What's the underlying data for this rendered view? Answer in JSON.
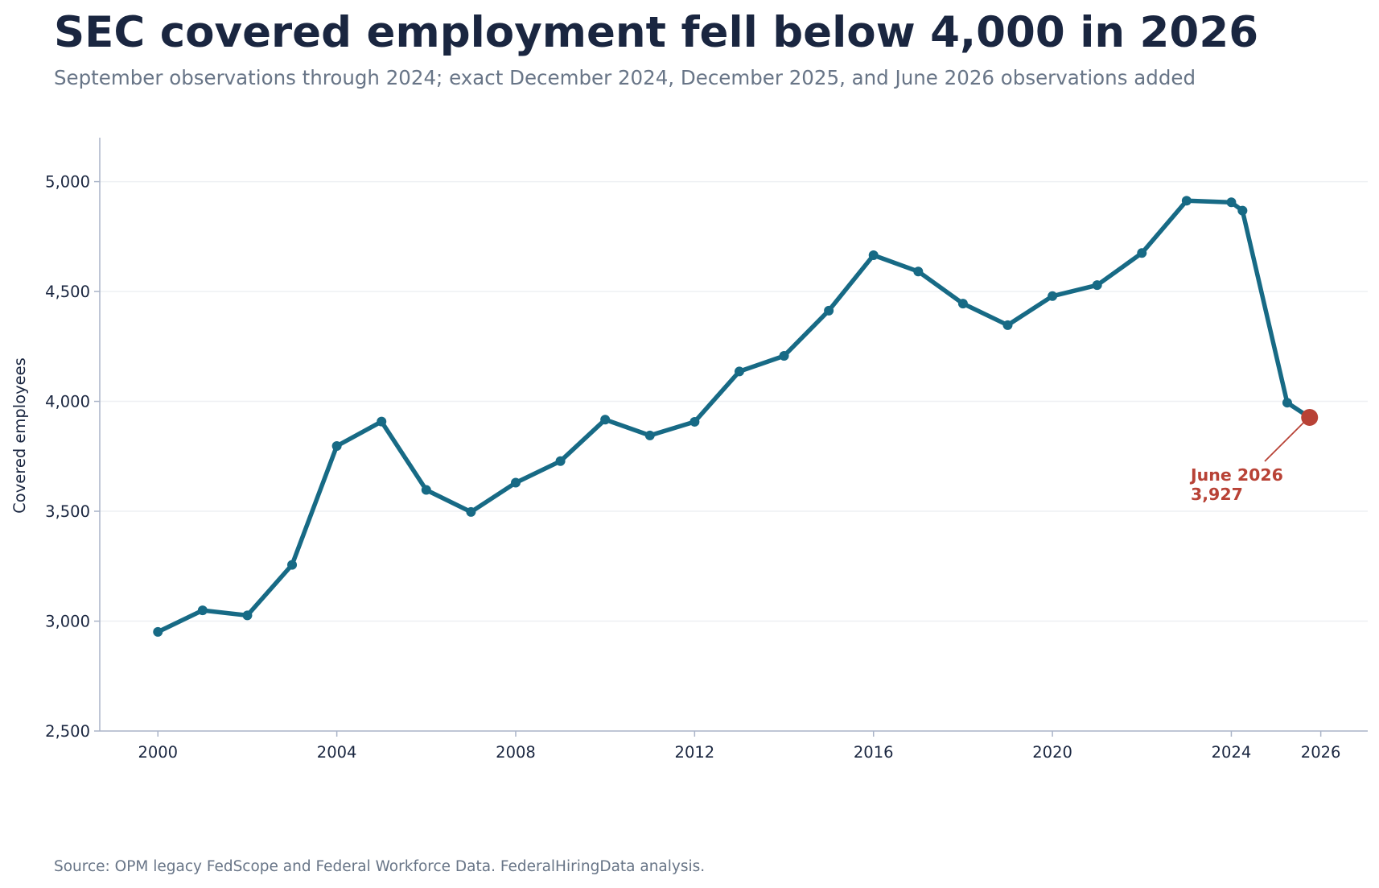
{
  "chart_data": {
    "type": "line",
    "title": "SEC covered employment fell below 4,000 in 2026",
    "subtitle": "September observations through 2024; exact December 2024, December 2025, and June 2026 observations added",
    "ylabel": "Covered employees",
    "xlabel": "",
    "source": "Source: OPM legacy FedScope and Federal Workforce Data. FederalHiringData analysis.",
    "xlim": [
      1998.7,
      2027.05
    ],
    "ylim": [
      2500,
      5200
    ],
    "x_ticks": [
      2000,
      2004,
      2008,
      2012,
      2016,
      2020,
      2024,
      2026
    ],
    "x_tick_labels": [
      "2000",
      "2004",
      "2008",
      "2012",
      "2016",
      "2020",
      "2024",
      "2026"
    ],
    "y_ticks": [
      2500,
      3000,
      3500,
      4000,
      4500,
      5000
    ],
    "y_tick_labels": [
      "2,500",
      "3,000",
      "3,500",
      "4,000",
      "4,500",
      "5,000"
    ],
    "grid": "horizontal",
    "colors": {
      "line": "#176a85",
      "highlight": "#b84236",
      "grid": "#eef0f3",
      "axis": "#aab4c8",
      "text": "#1a2640"
    },
    "series": [
      {
        "x": [
          2000,
          2001,
          2002,
          2003,
          2004,
          2005,
          2006,
          2007,
          2008,
          2009,
          2010,
          2011,
          2012,
          2013,
          2014,
          2015,
          2016,
          2017,
          2018,
          2019,
          2020,
          2021,
          2022,
          2023,
          2024,
          2024.25,
          2025.25,
          2025.75
        ],
        "values": [
          2951,
          3049,
          3026,
          3256,
          3797,
          3908,
          3597,
          3497,
          3630,
          3728,
          3917,
          3845,
          3907,
          4136,
          4207,
          4413,
          4665,
          4591,
          4445,
          4347,
          4479,
          4529,
          4675,
          4913,
          4906,
          4868,
          3994,
          3927
        ]
      }
    ],
    "annotation": {
      "label_line1": "June 2026",
      "label_line2": "3,927",
      "x": 2025.75,
      "y": 3927
    }
  }
}
